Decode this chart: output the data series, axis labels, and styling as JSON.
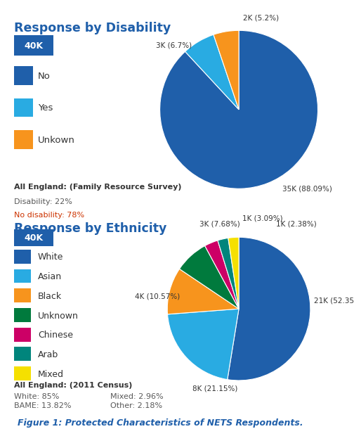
{
  "disability": {
    "title": "Response by Disability",
    "badge": "40K",
    "values": [
      88.09,
      6.7,
      5.2
    ],
    "colors": [
      "#1f5faa",
      "#29abe2",
      "#f7941d"
    ],
    "legend_labels": [
      "No",
      "Yes",
      "Unkown"
    ],
    "label_35k": "35K (88.09%)",
    "label_3k": "3K (6.7%)",
    "label_2k": "2K (5.2%)",
    "all_england_title": "All England: (Family Resource Survey)",
    "disability_line": "Disability: 22%",
    "no_disability_line": "No disability: 78%"
  },
  "ethnicity": {
    "title": "Response by Ethnicity",
    "badge": "40K",
    "values": [
      52.35,
      21.15,
      10.57,
      7.68,
      3.09,
      2.38,
      2.38
    ],
    "colors": [
      "#1f5faa",
      "#29abe2",
      "#f7941d",
      "#007a3d",
      "#cc0066",
      "#00857c",
      "#f5e000"
    ],
    "legend_labels": [
      "White",
      "Asian",
      "Black",
      "Unknown",
      "Chinese",
      "Arab",
      "Mixed"
    ],
    "label_21k": "21K (52.35",
    "label_8k": "8K (21.15%)",
    "label_4k": "4K (10.57%)",
    "label_3k": "3K (7.68%)",
    "label_1k_309": "1K (3.09%)",
    "label_1k_238": "1K (2.38%)",
    "all_england_title": "All England: (2011 Census)",
    "line1": "White: 85%      Mixed: 2.96%",
    "line2_col1": "BAME: 13.82%",
    "line2_col2": "Other: 2.18%"
  },
  "figure_caption": "Figure 1: Protected Characteristics of NETS Respondents.",
  "bg_color": "#ffffff",
  "title_color": "#1f5faa",
  "badge_bg": "#1f5faa",
  "badge_fg": "#ffffff",
  "text_dark": "#333333",
  "text_gray": "#595959",
  "no_disability_color": "#cc3300",
  "caption_color": "#1f5faa",
  "divider_color": "#bbbbbb"
}
